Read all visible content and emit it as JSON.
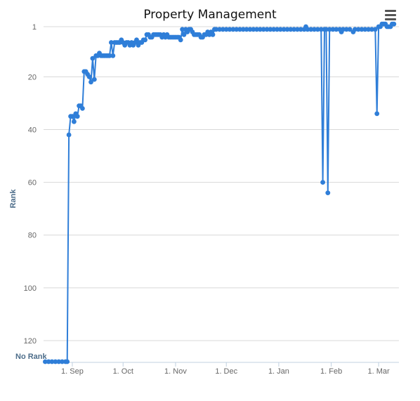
{
  "chart_title": "Property Management",
  "menu_icon": "hamburger-menu-icon",
  "colors": {
    "series": "#2f7ed8",
    "grid": "#d8d8d8",
    "axis_label": "#4d6d8a",
    "tick": "#666666"
  },
  "chart_data": {
    "type": "line",
    "title": "Property Management",
    "xlabel": "",
    "ylabel": "Rank",
    "y_reversed": true,
    "ylim": [
      1,
      128
    ],
    "yticks": [
      1,
      20,
      40,
      60,
      80,
      100,
      120
    ],
    "y_bottom_label": "No Rank",
    "no_rank_value": 128,
    "x_ticks": [
      {
        "date": "2013-09-01",
        "label": "1. Sep"
      },
      {
        "date": "2013-10-01",
        "label": "1. Oct"
      },
      {
        "date": "2013-11-01",
        "label": "1. Nov"
      },
      {
        "date": "2013-12-01",
        "label": "1. Dec"
      },
      {
        "date": "2014-01-01",
        "label": "1. Jan"
      },
      {
        "date": "2014-02-01",
        "label": "1. Feb"
      },
      {
        "date": "2014-03-01",
        "label": "1. Mar"
      }
    ],
    "xlim": [
      "2013-08-15",
      "2014-03-13"
    ],
    "grid": true,
    "legend": "none",
    "series": [
      {
        "points": [
          [
            "2013-08-16",
            128
          ],
          [
            "2013-08-18",
            128
          ],
          [
            "2013-08-20",
            128
          ],
          [
            "2013-08-22",
            128
          ],
          [
            "2013-08-24",
            128
          ],
          [
            "2013-08-26",
            128
          ],
          [
            "2013-08-28",
            128
          ],
          [
            "2013-08-29",
            128
          ],
          [
            "2013-08-30",
            42
          ],
          [
            "2013-08-31",
            35
          ],
          [
            "2013-09-01",
            35
          ],
          [
            "2013-09-02",
            37
          ],
          [
            "2013-09-03",
            34
          ],
          [
            "2013-09-04",
            35
          ],
          [
            "2013-09-05",
            31
          ],
          [
            "2013-09-06",
            31
          ],
          [
            "2013-09-07",
            32
          ],
          [
            "2013-09-08",
            18
          ],
          [
            "2013-09-09",
            18
          ],
          [
            "2013-09-10",
            19
          ],
          [
            "2013-09-11",
            20
          ],
          [
            "2013-09-12",
            22
          ],
          [
            "2013-09-13",
            13
          ],
          [
            "2013-09-14",
            21
          ],
          [
            "2013-09-15",
            12
          ],
          [
            "2013-09-16",
            12
          ],
          [
            "2013-09-17",
            11
          ],
          [
            "2013-09-18",
            12
          ],
          [
            "2013-09-19",
            12
          ],
          [
            "2013-09-20",
            12
          ],
          [
            "2013-09-21",
            12
          ],
          [
            "2013-09-22",
            12
          ],
          [
            "2013-09-23",
            12
          ],
          [
            "2013-09-24",
            7
          ],
          [
            "2013-09-25",
            12
          ],
          [
            "2013-09-26",
            7
          ],
          [
            "2013-09-27",
            7
          ],
          [
            "2013-09-28",
            7
          ],
          [
            "2013-09-29",
            7
          ],
          [
            "2013-09-30",
            6
          ],
          [
            "2013-10-01",
            7
          ],
          [
            "2013-10-02",
            8
          ],
          [
            "2013-10-03",
            7
          ],
          [
            "2013-10-04",
            7
          ],
          [
            "2013-10-05",
            8
          ],
          [
            "2013-10-06",
            7
          ],
          [
            "2013-10-07",
            8
          ],
          [
            "2013-10-08",
            7
          ],
          [
            "2013-10-09",
            6
          ],
          [
            "2013-10-10",
            8
          ],
          [
            "2013-10-11",
            7
          ],
          [
            "2013-10-12",
            7
          ],
          [
            "2013-10-13",
            6
          ],
          [
            "2013-10-14",
            6
          ],
          [
            "2013-10-15",
            4
          ],
          [
            "2013-10-16",
            4
          ],
          [
            "2013-10-17",
            5
          ],
          [
            "2013-10-18",
            5
          ],
          [
            "2013-10-19",
            4
          ],
          [
            "2013-10-20",
            4
          ],
          [
            "2013-10-21",
            4
          ],
          [
            "2013-10-22",
            4
          ],
          [
            "2013-10-23",
            4
          ],
          [
            "2013-10-24",
            5
          ],
          [
            "2013-10-25",
            4
          ],
          [
            "2013-10-26",
            5
          ],
          [
            "2013-10-27",
            4
          ],
          [
            "2013-10-28",
            5
          ],
          [
            "2013-10-29",
            5
          ],
          [
            "2013-10-30",
            5
          ],
          [
            "2013-10-31",
            5
          ],
          [
            "2013-11-01",
            5
          ],
          [
            "2013-11-02",
            5
          ],
          [
            "2013-11-03",
            5
          ],
          [
            "2013-11-04",
            6
          ],
          [
            "2013-11-05",
            2
          ],
          [
            "2013-11-06",
            4
          ],
          [
            "2013-11-07",
            2
          ],
          [
            "2013-11-08",
            3
          ],
          [
            "2013-11-09",
            2
          ],
          [
            "2013-11-10",
            2
          ],
          [
            "2013-11-11",
            3
          ],
          [
            "2013-11-12",
            4
          ],
          [
            "2013-11-13",
            4
          ],
          [
            "2013-11-14",
            4
          ],
          [
            "2013-11-15",
            4
          ],
          [
            "2013-11-16",
            5
          ],
          [
            "2013-11-17",
            5
          ],
          [
            "2013-11-18",
            4
          ],
          [
            "2013-11-19",
            4
          ],
          [
            "2013-11-20",
            3
          ],
          [
            "2013-11-21",
            4
          ],
          [
            "2013-11-22",
            3
          ],
          [
            "2013-11-23",
            4
          ],
          [
            "2013-11-24",
            2
          ],
          [
            "2013-11-25",
            2
          ],
          [
            "2013-11-27",
            2
          ],
          [
            "2013-11-29",
            2
          ],
          [
            "2013-12-01",
            2
          ],
          [
            "2013-12-03",
            2
          ],
          [
            "2013-12-05",
            2
          ],
          [
            "2013-12-07",
            2
          ],
          [
            "2013-12-09",
            2
          ],
          [
            "2013-12-11",
            2
          ],
          [
            "2013-12-13",
            2
          ],
          [
            "2013-12-15",
            2
          ],
          [
            "2013-12-17",
            2
          ],
          [
            "2013-12-19",
            2
          ],
          [
            "2013-12-21",
            2
          ],
          [
            "2013-12-23",
            2
          ],
          [
            "2013-12-25",
            2
          ],
          [
            "2013-12-27",
            2
          ],
          [
            "2013-12-29",
            2
          ],
          [
            "2013-12-31",
            2
          ],
          [
            "2014-01-02",
            2
          ],
          [
            "2014-01-04",
            2
          ],
          [
            "2014-01-06",
            2
          ],
          [
            "2014-01-08",
            2
          ],
          [
            "2014-01-10",
            2
          ],
          [
            "2014-01-12",
            2
          ],
          [
            "2014-01-14",
            2
          ],
          [
            "2014-01-16",
            2
          ],
          [
            "2014-01-17",
            1
          ],
          [
            "2014-01-18",
            2
          ],
          [
            "2014-01-20",
            2
          ],
          [
            "2014-01-22",
            2
          ],
          [
            "2014-01-24",
            2
          ],
          [
            "2014-01-26",
            2
          ],
          [
            "2014-01-27",
            60
          ],
          [
            "2014-01-28",
            2
          ],
          [
            "2014-01-29",
            2
          ],
          [
            "2014-01-30",
            64
          ],
          [
            "2014-01-31",
            2
          ],
          [
            "2014-02-02",
            2
          ],
          [
            "2014-02-04",
            2
          ],
          [
            "2014-02-06",
            2
          ],
          [
            "2014-02-07",
            3
          ],
          [
            "2014-02-08",
            2
          ],
          [
            "2014-02-10",
            2
          ],
          [
            "2014-02-12",
            2
          ],
          [
            "2014-02-14",
            3
          ],
          [
            "2014-02-15",
            2
          ],
          [
            "2014-02-17",
            2
          ],
          [
            "2014-02-19",
            2
          ],
          [
            "2014-02-21",
            2
          ],
          [
            "2014-02-23",
            2
          ],
          [
            "2014-02-25",
            2
          ],
          [
            "2014-02-27",
            2
          ],
          [
            "2014-02-28",
            34
          ],
          [
            "2014-03-01",
            1
          ],
          [
            "2014-03-02",
            1
          ],
          [
            "2014-03-03",
            0
          ],
          [
            "2014-03-04",
            0
          ],
          [
            "2014-03-05",
            0
          ],
          [
            "2014-03-06",
            1
          ],
          [
            "2014-03-07",
            1
          ],
          [
            "2014-03-08",
            1
          ],
          [
            "2014-03-09",
            0
          ],
          [
            "2014-03-10",
            0
          ]
        ]
      }
    ]
  }
}
